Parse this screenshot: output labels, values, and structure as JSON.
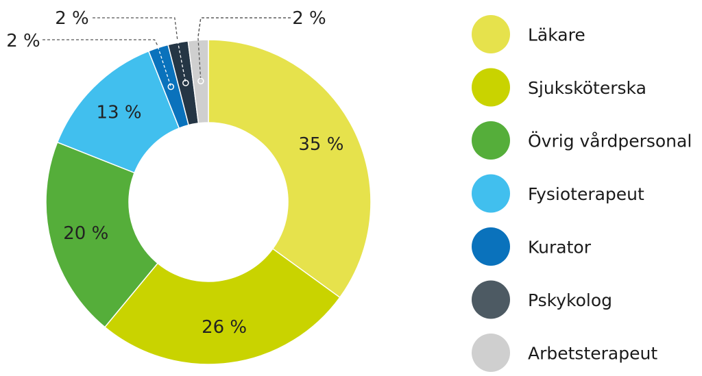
{
  "chart_data": {
    "type": "pie",
    "variant": "donut",
    "slices": [
      {
        "label": "Läkare",
        "value": 35,
        "value_label": "35 %",
        "color": "#e6e24c"
      },
      {
        "label": "Sjuksköterska",
        "value": 26,
        "value_label": "26 %",
        "color": "#c9d300"
      },
      {
        "label": "Övrig vårdpersonal",
        "value": 20,
        "value_label": "20 %",
        "color": "#55ae3a"
      },
      {
        "label": "Fysioterapeut",
        "value": 13,
        "value_label": "13 %",
        "color": "#41bfee"
      },
      {
        "label": "Kurator",
        "value": 2,
        "value_label": "2 %",
        "color": "#0a72bc"
      },
      {
        "label": "Pskykolog",
        "value": 2,
        "value_label": "2 %",
        "color": "#253645"
      },
      {
        "label": "Arbetsterapeut",
        "value": 2,
        "value_label": "2 %",
        "color": "#cfcfcf"
      }
    ],
    "legend_position": "right",
    "legend_marker_colors": [
      "#e6e24c",
      "#c9d300",
      "#55ae3a",
      "#41bfee",
      "#0a72bc",
      "#4d5a63",
      "#cfcfcf"
    ]
  }
}
